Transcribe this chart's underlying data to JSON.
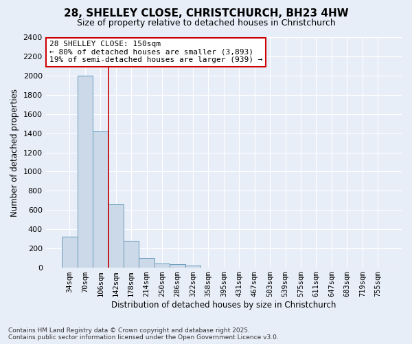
{
  "title_line1": "28, SHELLEY CLOSE, CHRISTCHURCH, BH23 4HW",
  "title_line2": "Size of property relative to detached houses in Christchurch",
  "xlabel": "Distribution of detached houses by size in Christchurch",
  "ylabel": "Number of detached properties",
  "bin_labels": [
    "34sqm",
    "70sqm",
    "106sqm",
    "142sqm",
    "178sqm",
    "214sqm",
    "250sqm",
    "286sqm",
    "322sqm",
    "358sqm",
    "395sqm",
    "431sqm",
    "467sqm",
    "503sqm",
    "539sqm",
    "575sqm",
    "611sqm",
    "647sqm",
    "683sqm",
    "719sqm",
    "755sqm"
  ],
  "bar_heights": [
    320,
    2000,
    1420,
    660,
    280,
    100,
    45,
    35,
    20,
    0,
    0,
    0,
    0,
    0,
    0,
    0,
    0,
    0,
    0,
    0,
    0
  ],
  "bar_color": "#ccd9e8",
  "bar_edgecolor": "#6699bb",
  "bar_linewidth": 0.7,
  "vline_color": "#cc0000",
  "vline_linewidth": 1.2,
  "vline_xindex": 2.5,
  "annotation_text": "28 SHELLEY CLOSE: 150sqm\n← 80% of detached houses are smaller (3,893)\n19% of semi-detached houses are larger (939) →",
  "annotation_box_facecolor": "#ffffff",
  "annotation_box_edgecolor": "#cc0000",
  "ylim": [
    0,
    2400
  ],
  "yticks": [
    0,
    200,
    400,
    600,
    800,
    1000,
    1200,
    1400,
    1600,
    1800,
    2000,
    2200,
    2400
  ],
  "background_color": "#e8eef8",
  "plot_background_color": "#e8eef8",
  "grid_color": "#ffffff",
  "footer_line1": "Contains HM Land Registry data © Crown copyright and database right 2025.",
  "footer_line2": "Contains public sector information licensed under the Open Government Licence v3.0."
}
